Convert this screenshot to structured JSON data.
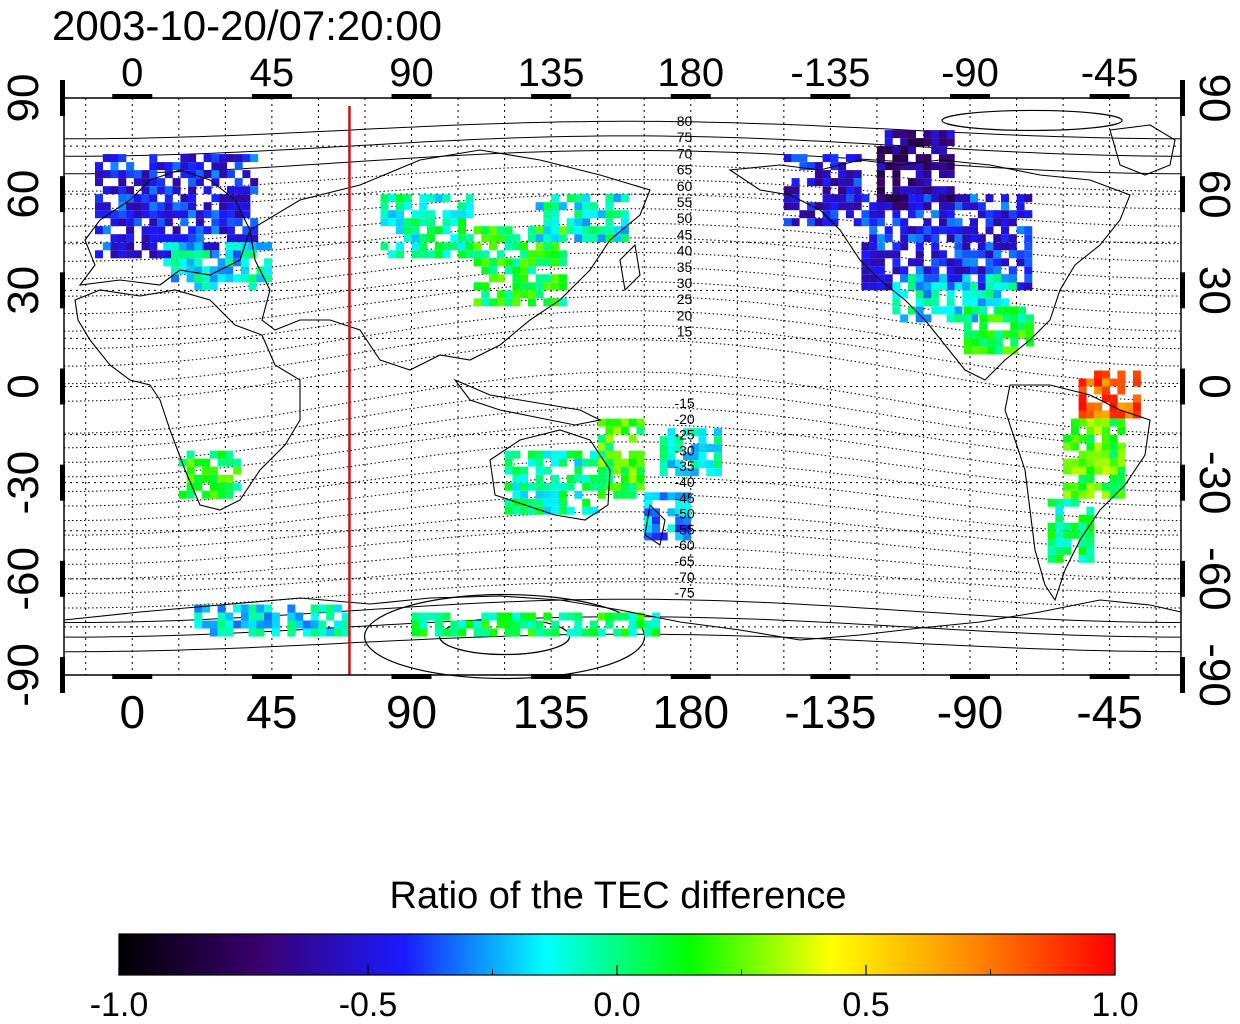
{
  "title": "2003-10-20/07:20:00",
  "map": {
    "projection": "equirectangular",
    "lon_range": [
      -22,
      338
    ],
    "lat_range": [
      -90,
      90
    ],
    "top_lon_ticks": [
      "0",
      "45",
      "90",
      "135",
      "180",
      "-135",
      "-90",
      "-45"
    ],
    "bottom_lon_ticks": [
      "0",
      "45",
      "90",
      "135",
      "180",
      "-135",
      "-90",
      "-45"
    ],
    "lon_tick_values": [
      0,
      45,
      90,
      135,
      180,
      225,
      270,
      315
    ],
    "left_lat_ticks": [
      "90",
      "60",
      "30",
      "0",
      "-30",
      "-60",
      "-90"
    ],
    "right_lat_ticks": [
      "90",
      "60",
      "30",
      "0",
      "-30",
      "-60",
      "-90"
    ],
    "lat_tick_values": [
      90,
      60,
      30,
      0,
      -30,
      -60,
      -90
    ],
    "grid": "dotted every 15 degrees",
    "marker_line": {
      "lon": 70,
      "color": "#cc1111"
    },
    "contour_labels_north": [
      "80",
      "75",
      "70",
      "65",
      "60",
      "55",
      "50",
      "45",
      "40",
      "35",
      "30",
      "25",
      "20",
      "15"
    ],
    "contour_labels_south": [
      "-15",
      "-20",
      "-25",
      "-30",
      "-35",
      "-40",
      "-45",
      "-50",
      "-55",
      "-60",
      "-65",
      "-70",
      "-75"
    ],
    "contour_label_lon": 178
  },
  "colorbar": {
    "title": "Ratio of the TEC difference",
    "min": -1.0,
    "max": 1.0,
    "tick_labels": [
      "-1.0",
      "-0.5",
      "0.0",
      "0.5",
      "1.0"
    ],
    "tick_values": [
      -1.0,
      -0.5,
      0.0,
      0.5,
      1.0
    ],
    "colors": [
      "#000000",
      "#3a0070",
      "#1a1aff",
      "#00ffff",
      "#00ff00",
      "#ffff00",
      "#ff8800",
      "#ff0000"
    ]
  },
  "tec_regions": [
    {
      "lon0": -12,
      "lon1": 40,
      "lat0": 40,
      "lat1": 72,
      "value": -0.45
    },
    {
      "lon0": 10,
      "lon1": 45,
      "lat0": 30,
      "lat1": 45,
      "value": -0.15
    },
    {
      "lon0": 80,
      "lon1": 110,
      "lat0": 40,
      "lat1": 60,
      "value": -0.05
    },
    {
      "lon0": 110,
      "lon1": 140,
      "lat0": 25,
      "lat1": 50,
      "value": 0.1
    },
    {
      "lon0": 130,
      "lon1": 160,
      "lat0": 45,
      "lat1": 60,
      "value": -0.1
    },
    {
      "lon0": 210,
      "lon1": 235,
      "lat0": 50,
      "lat1": 72,
      "value": -0.5
    },
    {
      "lon0": 235,
      "lon1": 290,
      "lat0": 30,
      "lat1": 60,
      "value": -0.45
    },
    {
      "lon0": 240,
      "lon1": 265,
      "lat0": 55,
      "lat1": 80,
      "value": -0.65
    },
    {
      "lon0": 245,
      "lon1": 285,
      "lat0": 20,
      "lat1": 33,
      "value": -0.15
    },
    {
      "lon0": 268,
      "lon1": 290,
      "lat0": 10,
      "lat1": 25,
      "value": 0.1
    },
    {
      "lon0": 15,
      "lon1": 35,
      "lat0": -35,
      "lat1": -22,
      "value": 0.1
    },
    {
      "lon0": 120,
      "lon1": 150,
      "lat0": -40,
      "lat1": -20,
      "value": -0.05
    },
    {
      "lon0": 165,
      "lon1": 180,
      "lat0": -48,
      "lat1": -35,
      "value": -0.25
    },
    {
      "lon0": 170,
      "lon1": 190,
      "lat0": -28,
      "lat1": -15,
      "value": -0.1
    },
    {
      "lon0": 300,
      "lon1": 320,
      "lat0": -35,
      "lat1": -10,
      "value": 0.2
    },
    {
      "lon0": 295,
      "lon1": 310,
      "lat0": -55,
      "lat1": -35,
      "value": 0.0
    },
    {
      "lon0": 20,
      "lon1": 70,
      "lat0": -78,
      "lat1": -70,
      "value": -0.15
    },
    {
      "lon0": 90,
      "lon1": 170,
      "lat0": -78,
      "lat1": -72,
      "value": 0.05
    },
    {
      "lon0": 150,
      "lon1": 165,
      "lat0": -35,
      "lat1": -10,
      "value": 0.15
    },
    {
      "lon0": 305,
      "lon1": 325,
      "lat0": -10,
      "lat1": 5,
      "value": 0.8
    }
  ]
}
